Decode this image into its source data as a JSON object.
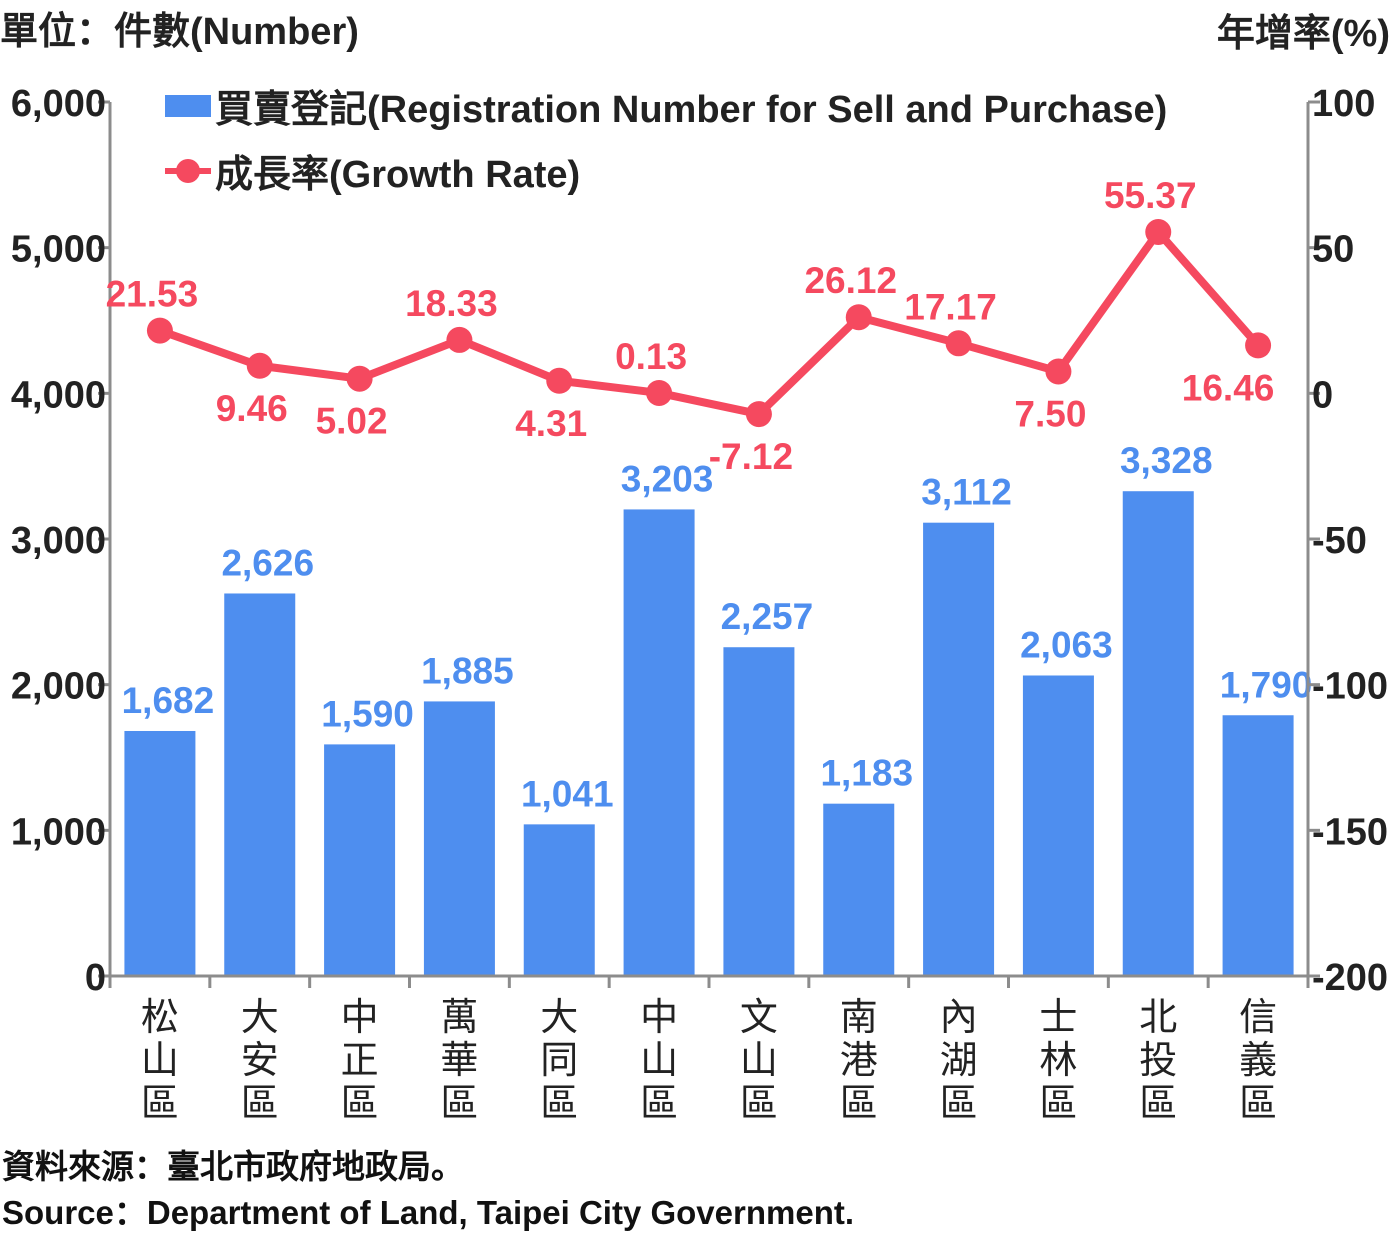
{
  "header": {
    "left_unit": "單位：件數(Number)",
    "right_unit": "年增率(%)"
  },
  "legend": {
    "bar_label": "買賣登記(Registration Number for Sell and Purchase)",
    "line_label": "成長率(Growth Rate)"
  },
  "footer": {
    "source_cn": "資料來源：臺北市政府地政局。",
    "source_en": "Source：Department of Land, Taipei City Government."
  },
  "colors": {
    "bar": "#4e8eef",
    "bar_label": "#4e8eef",
    "line": "#f5495f",
    "axis": "#8c8c8c",
    "tick_text": "#222222"
  },
  "chart_data": {
    "type": "bar+line",
    "categories": [
      "松山區",
      "大安區",
      "中正區",
      "萬華區",
      "大同區",
      "中山區",
      "文山區",
      "南港區",
      "內湖區",
      "士林區",
      "北投區",
      "信義區"
    ],
    "series": [
      {
        "name": "買賣登記(Registration Number for Sell and Purchase)",
        "type": "bar",
        "axis": "left",
        "values": [
          1682,
          2626,
          1590,
          1885,
          1041,
          3203,
          2257,
          1183,
          3112,
          2063,
          3328,
          1790
        ],
        "labels": [
          "1,682",
          "2,626",
          "1,590",
          "1,885",
          "1,041",
          "3,203",
          "2,257",
          "1,183",
          "3,112",
          "2,063",
          "3,328",
          "1,790"
        ]
      },
      {
        "name": "成長率(Growth Rate)",
        "type": "line",
        "axis": "right",
        "values": [
          21.53,
          9.46,
          5.02,
          18.33,
          4.31,
          0.13,
          -7.12,
          26.12,
          17.17,
          7.5,
          55.37,
          16.46
        ],
        "labels": [
          "21.53",
          "9.46",
          "5.02",
          "18.33",
          "4.31",
          "0.13",
          "-7.12",
          "26.12",
          "17.17",
          "7.50",
          "55.37",
          "16.46"
        ],
        "label_positions": [
          "above",
          "below",
          "below",
          "above",
          "below",
          "above",
          "below",
          "above",
          "above",
          "below",
          "above",
          "below"
        ]
      }
    ],
    "y_left": {
      "range": [
        0,
        6000
      ],
      "ticks": [
        0,
        1000,
        2000,
        3000,
        4000,
        5000,
        6000
      ],
      "tick_labels": [
        "0",
        "1,000",
        "2,000",
        "3,000",
        "4,000",
        "5,000",
        "6,000"
      ]
    },
    "y_right": {
      "range": [
        -200,
        100
      ],
      "ticks": [
        -200,
        -150,
        -100,
        -50,
        0,
        50,
        100
      ],
      "tick_labels": [
        "-200",
        "-150",
        "-100",
        "-50",
        "0",
        "50",
        "100"
      ]
    },
    "grid": false,
    "legend_position": "top-left"
  }
}
